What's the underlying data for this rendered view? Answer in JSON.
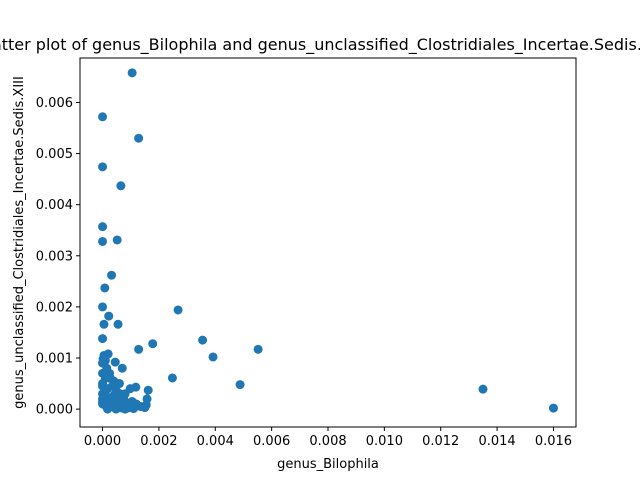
{
  "chart_data": {
    "type": "scatter",
    "title": "Scatter plot of genus_Bilophila and genus_unclassified_Clostridiales_Incertae.Sedis.XIII",
    "xlabel": "genus_Bilophila",
    "ylabel": "genus_unclassified_Clostridiales_Incertae.Sedis.XIII",
    "xlim": [
      -0.0008,
      0.0168
    ],
    "ylim": [
      -0.00035,
      0.00687
    ],
    "xticks": [
      0.0,
      0.002,
      0.004,
      0.006,
      0.008,
      0.01,
      0.012,
      0.014,
      0.016
    ],
    "xtick_labels": [
      "0.000",
      "0.002",
      "0.004",
      "0.006",
      "0.008",
      "0.010",
      "0.012",
      "0.014",
      "0.016"
    ],
    "yticks": [
      0.0,
      0.001,
      0.002,
      0.003,
      0.004,
      0.005,
      0.006
    ],
    "ytick_labels": [
      "0.000",
      "0.001",
      "0.002",
      "0.003",
      "0.004",
      "0.005",
      "0.006"
    ],
    "grid": false,
    "marker_color": "#1f77b4",
    "x": [
      0.00105,
      0.0,
      0.00128,
      0.0,
      0.00065,
      0.0,
      0.00052,
      0.0,
      0.00032,
      8e-05,
      0.0,
      0.00268,
      0.00022,
      5e-05,
      0.00055,
      0.00355,
      0.0,
      0.00178,
      0.00128,
      0.00552,
      5e-05,
      0.00392,
      0.0001,
      2e-05,
      0.0002,
      0.00045,
      0.0007,
      0.00025,
      0.00248,
      0.0001,
      0.00488,
      0.0135,
      0.00162,
      0.00118,
      0.00098,
      0.016,
      0.00158,
      0.00155,
      0.0004,
      0.0006,
      0.00035,
      0.00015,
      0.00028,
      0.0008,
      0.00018,
      0.0005,
      0.0,
      0.0009,
      0.0,
      0.00075,
      0.00038,
      0.00012,
      0.0,
      0.00062,
      0.00045,
      0.0002,
      0.00085,
      0.00105,
      0.0012,
      0.0,
      0.0003,
      0.00068,
      0.0001,
      0.0004,
      0.00058,
      0.0,
      0.0002,
      0.00095,
      0.00135,
      0.00048,
      0.00015,
      0.0007,
      0.00025,
      0.0,
      0.00035,
      0.0011,
      0.00055,
      0.0001,
      0.0008,
      0.0,
      0.00042,
      0.0015,
      0.00022,
      0.0006,
      0.0,
      0.00032,
      0.00088,
      0.00012,
      0.0005,
      0.00018
    ],
    "y": [
      0.00658,
      0.00572,
      0.0053,
      0.00474,
      0.00437,
      0.00357,
      0.00331,
      0.00328,
      0.00262,
      0.00237,
      0.002,
      0.00194,
      0.00182,
      0.00166,
      0.00166,
      0.00135,
      0.00138,
      0.00128,
      0.00117,
      0.00117,
      0.00105,
      0.00102,
      0.00095,
      0.00098,
      0.00108,
      0.00092,
      0.0008,
      0.0007,
      0.00061,
      0.0006,
      0.00048,
      0.00039,
      0.00037,
      0.00043,
      0.0004,
      2e-05,
      0.0002,
      8e-05,
      0.00055,
      0.0005,
      0.00045,
      0.0008,
      0.0006,
      0.0003,
      0.0004,
      0.00035,
      0.0007,
      0.0001,
      0.0005,
      0.0002,
      0.00025,
      0.00062,
      0.0009,
      0.0003,
      0.00018,
      0.00022,
      0.00012,
      0.00015,
      0.0001,
      0.0003,
      8e-05,
      0.00012,
      0.00035,
      5e-05,
      4e-05,
      0.00015,
      2e-05,
      3e-05,
      5e-05,
      0.0,
      0.00012,
      2e-05,
      4e-05,
      0.00045,
      8e-05,
      1e-05,
      0.00014,
      0.00022,
      0.0,
      0.0002,
      0.00028,
      3e-05,
      0.00016,
      7e-05,
      0.0001,
      0.0001,
      2e-05,
      6e-05,
      1e-05,
      0.0
    ]
  }
}
